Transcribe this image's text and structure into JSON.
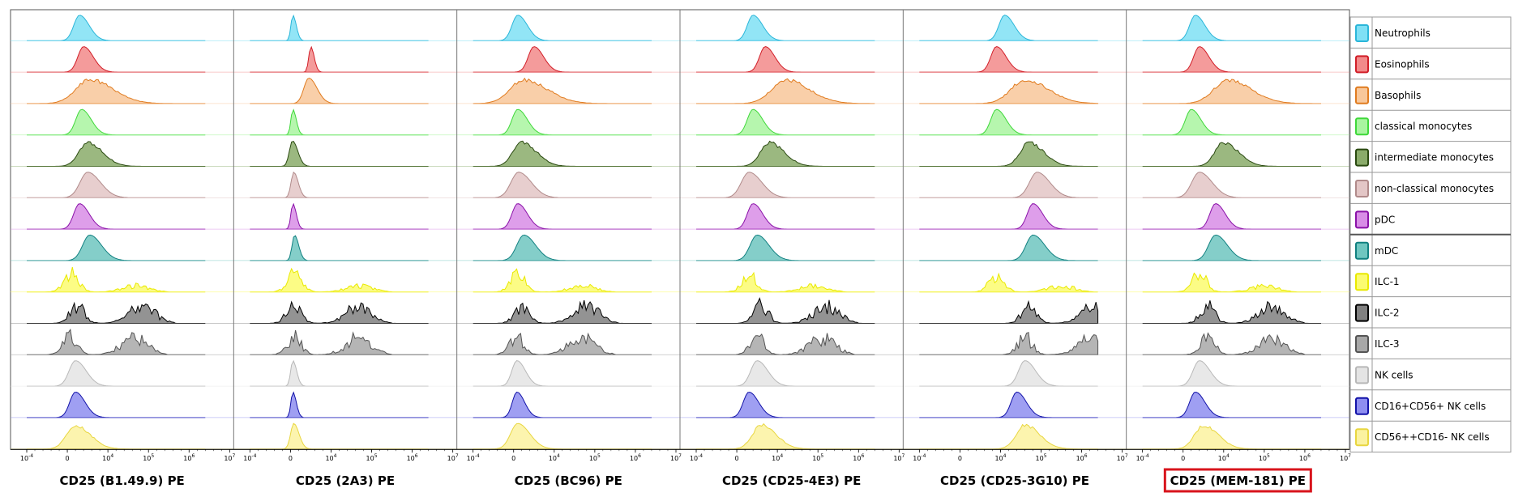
{
  "chart_data": {
    "type": "histogram_grid",
    "description_axis": "x-axis logarithmic fluorescence intensity",
    "x_ticks": [
      {
        "base": "10",
        "exp": "-4"
      },
      {
        "base": "0",
        "exp": ""
      },
      {
        "base": "10",
        "exp": "4"
      },
      {
        "base": "10",
        "exp": "5"
      },
      {
        "base": "10",
        "exp": "6"
      },
      {
        "base": "10",
        "exp": "7"
      }
    ],
    "panels": [
      {
        "title": "CD25 (B1.49.9) PE",
        "highlighted": false,
        "peaks": [
          0.3,
          0.4,
          0.55,
          0.35,
          0.5,
          0.5,
          0.3,
          0.55,
          0.1,
          0.25,
          0.05,
          0.2,
          0.2,
          0.2
        ]
      },
      {
        "title": "CD25 (2A3) PE",
        "highlighted": false,
        "peaks": [
          0.06,
          0.5,
          0.45,
          0.06,
          0.05,
          0.08,
          0.06,
          0.1,
          0.1,
          0.08,
          0.08,
          0.06,
          0.06,
          0.08
        ]
      },
      {
        "title": "CD25 (BC96) PE",
        "highlighted": false,
        "peaks": [
          0.1,
          0.5,
          0.25,
          0.1,
          0.2,
          0.12,
          0.1,
          0.25,
          0.1,
          0.2,
          0.08,
          0.08,
          0.08,
          0.1
        ]
      },
      {
        "title": "CD25 (CD25-4E3) PE",
        "highlighted": false,
        "peaks": [
          0.4,
          0.7,
          1.2,
          0.4,
          0.8,
          0.3,
          0.4,
          0.5,
          0.3,
          0.6,
          0.5,
          0.5,
          0.3,
          0.6
        ]
      },
      {
        "title": "CD25 (CD25-3G10) PE",
        "highlighted": false,
        "peaks": [
          1.1,
          0.9,
          1.6,
          0.9,
          1.7,
          1.9,
          1.8,
          1.8,
          0.9,
          1.7,
          1.6,
          1.6,
          1.4,
          1.6
        ]
      },
      {
        "title": "CD25 (MEM-181) PE",
        "highlighted": true,
        "peaks": [
          0.3,
          0.4,
          1.1,
          0.2,
          1.0,
          0.4,
          0.8,
          0.8,
          0.4,
          0.6,
          0.6,
          0.4,
          0.3,
          0.5
        ]
      }
    ],
    "legend": [
      {
        "label": "Neutrophils",
        "fill": "#7fe0f5",
        "stroke": "#2bb6d9",
        "spread": 0.45
      },
      {
        "label": "Eosinophils",
        "fill": "#f28a8a",
        "stroke": "#d11e28",
        "spread": 0.45
      },
      {
        "label": "Basophils",
        "fill": "#f8c79a",
        "stroke": "#e07b1f",
        "spread": 1.1
      },
      {
        "label": "classical monocytes",
        "fill": "#a9f5a0",
        "stroke": "#3fd83a",
        "spread": 0.45
      },
      {
        "label": "intermediate monocytes",
        "fill": "#8aab6a",
        "stroke": "#2a4a10",
        "spread": 0.7
      },
      {
        "label": "non-classical monocytes",
        "fill": "#e3c6c6",
        "stroke": "#b08a8a",
        "spread": 0.6
      },
      {
        "label": "pDC",
        "fill": "#d88de6",
        "stroke": "#8a11a8",
        "spread": 0.45
      },
      {
        "label": "mDC",
        "fill": "#6fc6c0",
        "stroke": "#118080",
        "spread": 0.55
      },
      {
        "label": "ILC-1",
        "fill": "#fbfb70",
        "stroke": "#e9e900",
        "spread": 0.6
      },
      {
        "label": "ILC-2",
        "fill": "#808080",
        "stroke": "#000000",
        "spread": 0.5
      },
      {
        "label": "ILC-3",
        "fill": "#a8a8a8",
        "stroke": "#555555",
        "spread": 0.6
      },
      {
        "label": "NK cells",
        "fill": "#e4e4e4",
        "stroke": "#b8b8b8",
        "spread": 0.5
      },
      {
        "label": "CD16+CD56+ NK cells",
        "fill": "#8e8ef0",
        "stroke": "#1212a8",
        "spread": 0.45
      },
      {
        "label": "CD56++CD16- NK cells",
        "fill": "#fbf2a0",
        "stroke": "#e8d640",
        "spread": 0.7
      }
    ]
  }
}
